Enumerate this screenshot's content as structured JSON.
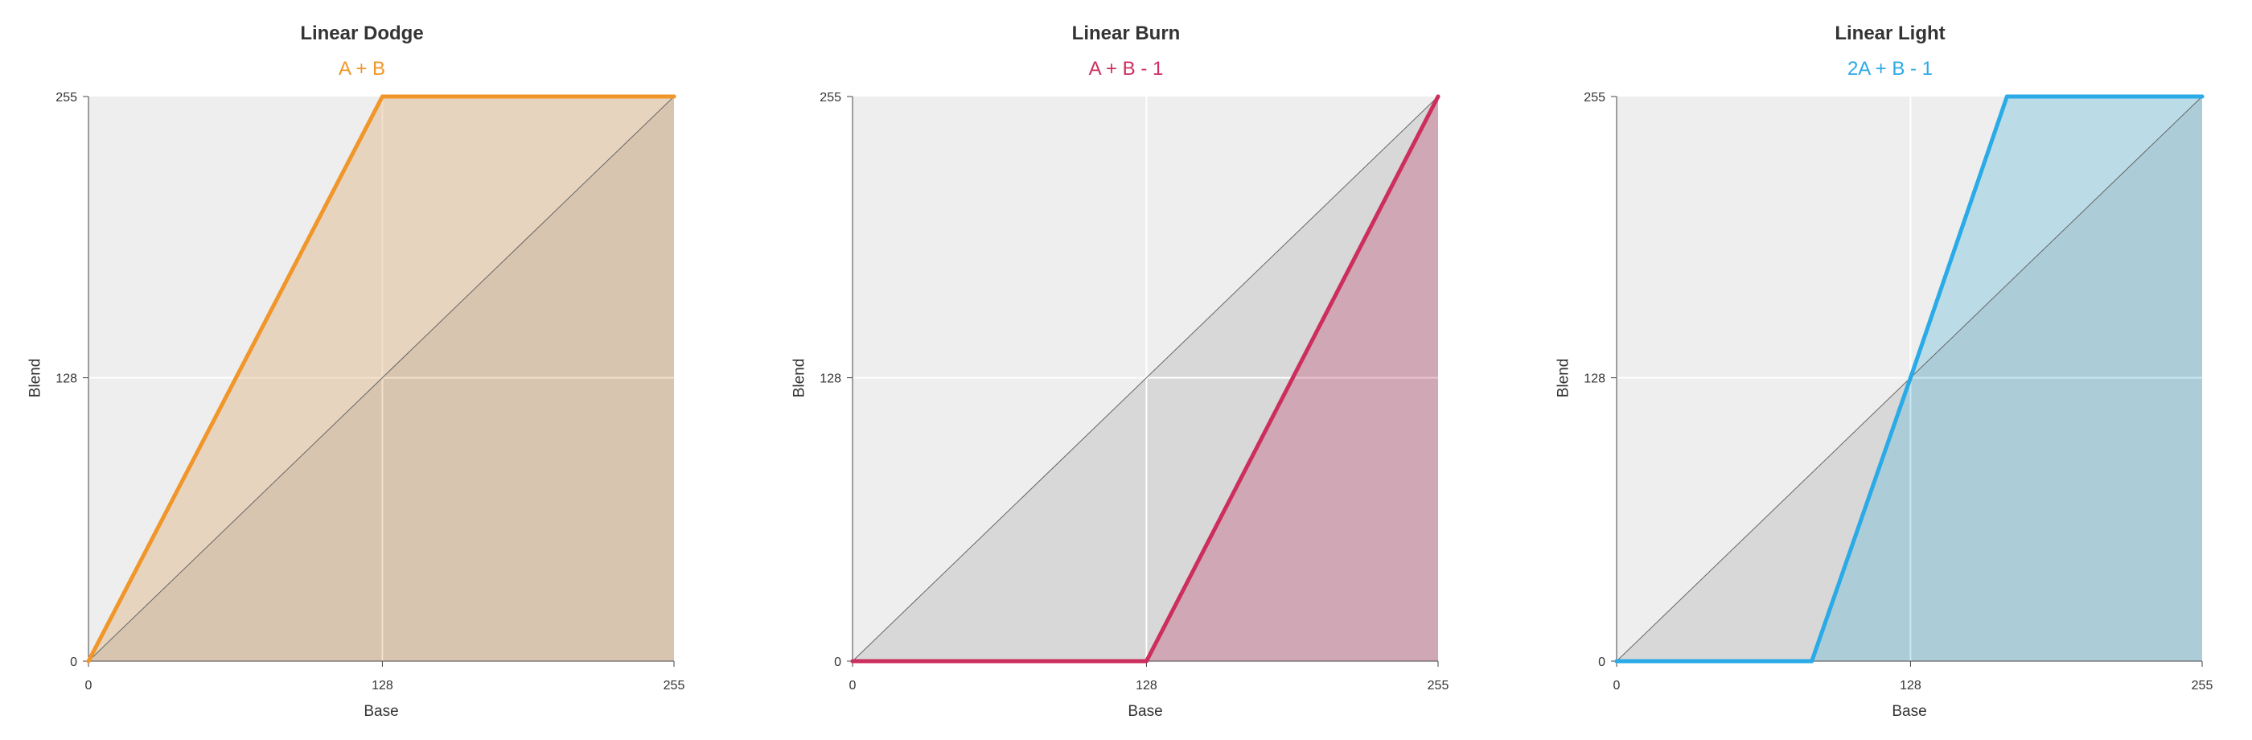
{
  "chart_data": [
    {
      "type": "line",
      "title": "Linear Dodge",
      "subtitle": "A + B",
      "color": "#f0962a",
      "fill_color": "#d9a05a",
      "xlabel": "Base",
      "ylabel": "Blend",
      "xlim": [
        0,
        255
      ],
      "ylim": [
        0,
        255
      ],
      "xticks": [
        "0",
        "128",
        "255"
      ],
      "yticks": [
        "0",
        "128",
        "255"
      ],
      "grid": true,
      "x": [
        0,
        128,
        255
      ],
      "y": [
        0,
        255,
        255
      ],
      "reference_line": {
        "x": [
          0,
          255
        ],
        "y": [
          0,
          255
        ]
      }
    },
    {
      "type": "line",
      "title": "Linear Burn",
      "subtitle": "A + B - 1",
      "color": "#cc2e5d",
      "fill_color": "#c0416a",
      "xlabel": "Base",
      "ylabel": "Blend",
      "xlim": [
        0,
        255
      ],
      "ylim": [
        0,
        255
      ],
      "xticks": [
        "0",
        "128",
        "255"
      ],
      "yticks": [
        "0",
        "128",
        "255"
      ],
      "grid": true,
      "x": [
        0,
        128,
        255
      ],
      "y": [
        0,
        0,
        255
      ],
      "reference_line": {
        "x": [
          0,
          255
        ],
        "y": [
          0,
          255
        ]
      }
    },
    {
      "type": "line",
      "title": "Linear Light",
      "subtitle": "2A + B - 1",
      "color": "#2aaae6",
      "fill_color": "#52b8d6",
      "xlabel": "Base",
      "ylabel": "Blend",
      "xlim": [
        0,
        255
      ],
      "ylim": [
        0,
        255
      ],
      "xticks": [
        "0",
        "128",
        "255"
      ],
      "yticks": [
        "0",
        "128",
        "255"
      ],
      "grid": true,
      "x": [
        0,
        85,
        128,
        170,
        255
      ],
      "y": [
        0,
        0,
        128,
        255,
        255
      ],
      "reference_line": {
        "x": [
          0,
          255
        ],
        "y": [
          0,
          255
        ]
      }
    }
  ]
}
